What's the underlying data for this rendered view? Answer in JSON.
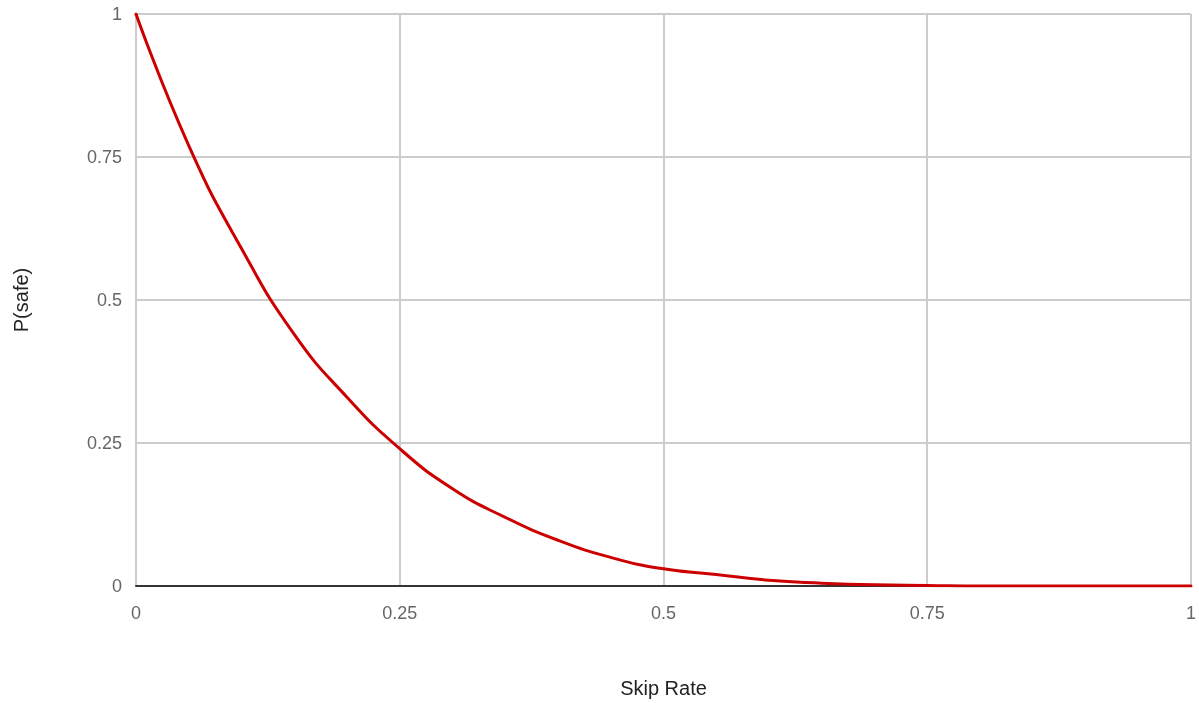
{
  "chart_data": {
    "type": "line",
    "xlabel": "Skip Rate",
    "ylabel": "P(safe)",
    "x": [
      0,
      0.05,
      0.1,
      0.15,
      0.2,
      0.25,
      0.3,
      0.35,
      0.4,
      0.45,
      0.5,
      0.55,
      0.6,
      0.65,
      0.7,
      0.75,
      0.8,
      0.85,
      0.9,
      0.95,
      1
    ],
    "series": [
      {
        "color": "#cc0000",
        "values": [
          1,
          0.77,
          0.59,
          0.44,
          0.33,
          0.24,
          0.17,
          0.12,
          0.08,
          0.05,
          0.03,
          0.02,
          0.01,
          0.005,
          0.002,
          0.001,
          0,
          0,
          0,
          0,
          0
        ]
      }
    ],
    "xlim": [
      0,
      1
    ],
    "xticks": [
      0,
      0.25,
      0.5,
      0.75,
      1
    ],
    "ylim": [
      0,
      1
    ],
    "yticks": [
      0,
      0.25,
      0.5,
      0.75,
      1
    ],
    "grid": true,
    "marker": "none",
    "line_style": "solid"
  }
}
